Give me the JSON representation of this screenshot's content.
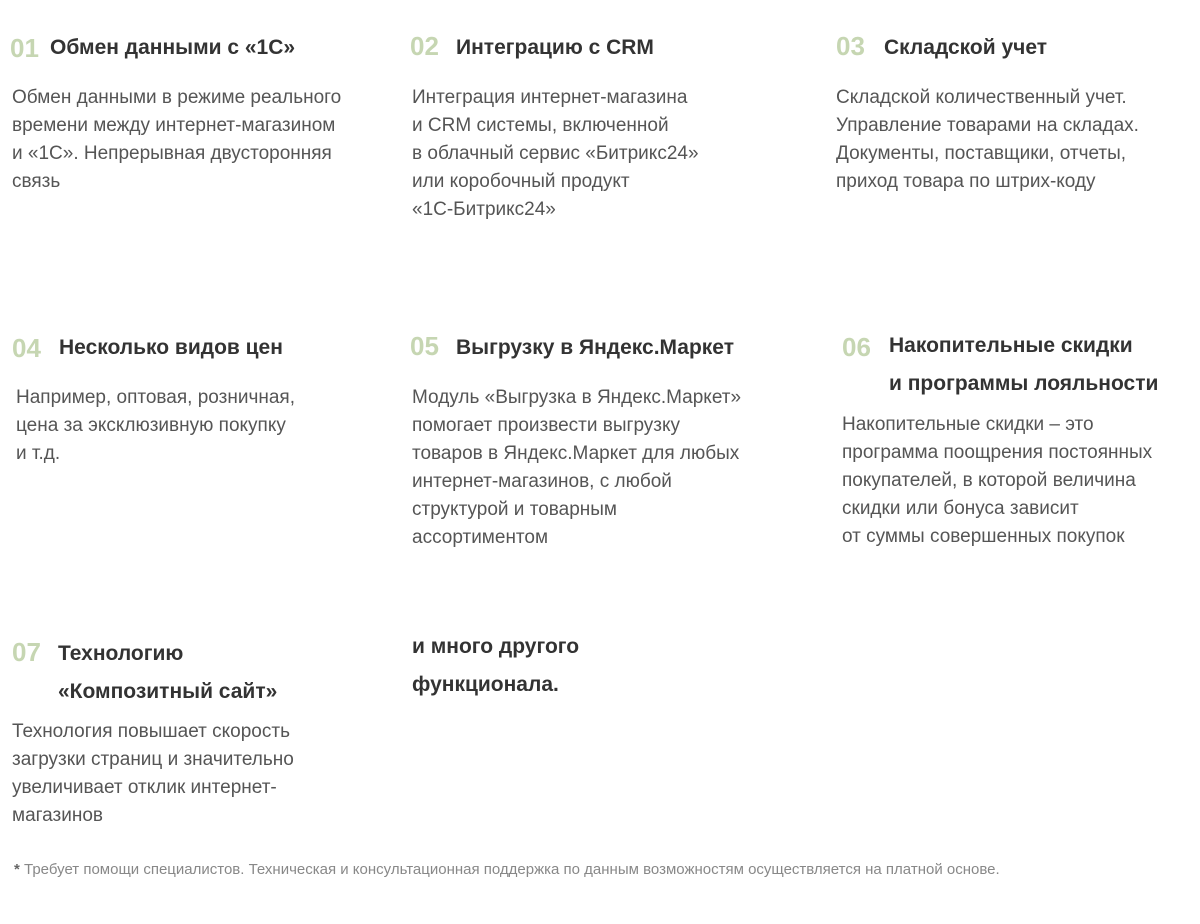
{
  "features": [
    {
      "num": "01",
      "title": "Обмен данными с «1С»",
      "text": "Обмен данными в режиме реального\nвремени между интернет-магазином\nи «1С». Непрерывная двусторонняя\nсвязь"
    },
    {
      "num": "02",
      "title": "Интеграцию с CRM",
      "text": "Интеграция интернет-магазина\nи CRM системы, включенной\nв облачный сервис «Битрикс24»\nили коробочный продукт\n«1С-Битрикс24»"
    },
    {
      "num": "03",
      "title": "Складской учет",
      "text": "Складской количественный учет.\nУправление товарами на складах.\nДокументы, поставщики, отчеты,\nприход товара по штрих-коду"
    },
    {
      "num": "04",
      "title": "Несколько видов цен",
      "text": "Например, оптовая, розничная,\nцена за эксклюзивную покупку\nи т.д."
    },
    {
      "num": "05",
      "title": "Выгрузку в Яндекс.Маркет",
      "text": "Модуль «Выгрузка в Яндекс.Маркет»\nпомогает произвести выгрузку\nтоваров в Яндекс.Маркет для любых\nинтернет-магазинов, с любой\nструктурой и товарным\nассортиментом"
    },
    {
      "num": "06",
      "title": "Накопительные скидки\nи программы лояльности",
      "text": "Накопительные скидки – это\nпрограмма поощрения постоянных\nпокупателей, в которой величина\nскидки или бонуса зависит\nот суммы совершенных покупок"
    },
    {
      "num": "07",
      "title": "Технологию\n«Композитный сайт»",
      "text": "Технология повышает скорость\nзагрузки страниц и значительно\nувеличивает отклик интернет-\nмагазинов"
    }
  ],
  "more": "и много другого\nфункционала.",
  "footnote": {
    "star": "*",
    "text": " Требует помощи специалистов. Техническая и консультационная поддержка по данным возможностям осуществляется на платной основе."
  },
  "colors": {
    "number": "#c6d6b2",
    "title": "#333333",
    "body": "#555555"
  }
}
